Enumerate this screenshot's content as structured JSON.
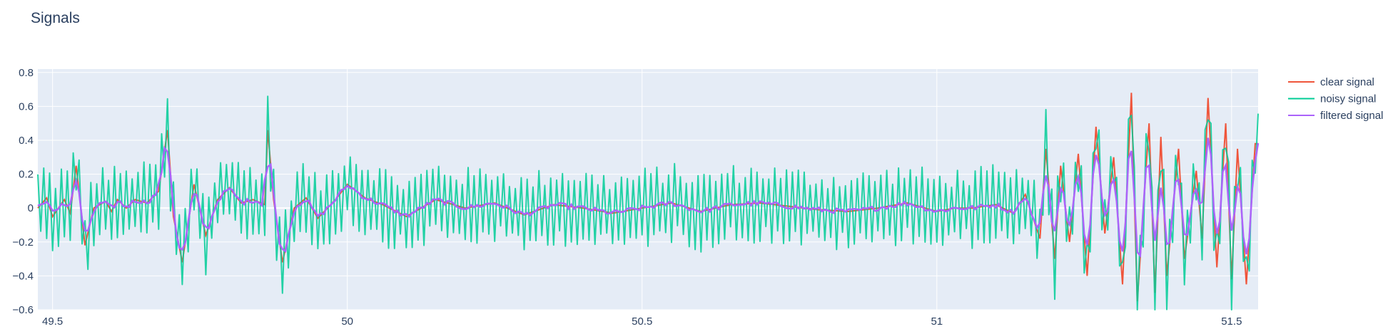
{
  "title": "Signals",
  "chart_data": {
    "type": "line",
    "title": "Signals",
    "xlabel": "",
    "ylabel": "",
    "xlim": [
      49.475,
      51.545
    ],
    "ylim": [
      -0.6,
      0.82
    ],
    "x_ticks": [
      49.5,
      50,
      50.5,
      51,
      51.5
    ],
    "x_tick_labels": [
      "49.5",
      "50",
      "50.5",
      "51",
      "51.5"
    ],
    "y_ticks": [
      0.8,
      0.6,
      0.4,
      0.2,
      0,
      -0.2,
      -0.4,
      -0.6
    ],
    "y_tick_labels": [
      "0.8",
      "0.6",
      "0.4",
      "0.2",
      "0",
      "−0.2",
      "−0.4",
      "−0.6"
    ],
    "grid": true,
    "legend_position": "top-right",
    "sample_step": 0.005,
    "noise_amplitude_note": "noisy signal alternates about the clear signal at every sample",
    "series": [
      {
        "name": "clear signal",
        "color": "#ef553b",
        "x": [
          49.475,
          49.49,
          49.5,
          49.52,
          49.53,
          49.54,
          49.555,
          49.57,
          49.59,
          49.6,
          49.61,
          49.625,
          49.64,
          49.66,
          49.68,
          49.695,
          49.705,
          49.72,
          49.74,
          49.76,
          49.78,
          49.8,
          49.82,
          49.84,
          49.86,
          49.865,
          49.875,
          49.89,
          49.91,
          49.93,
          49.95,
          49.98,
          50.0,
          50.03,
          50.06,
          50.1,
          50.15,
          50.2,
          50.25,
          50.3,
          50.35,
          50.4,
          50.45,
          50.5,
          50.55,
          50.6,
          50.65,
          50.7,
          50.75,
          50.8,
          50.85,
          50.9,
          50.95,
          51.0,
          51.03,
          51.06,
          51.1,
          51.13,
          51.15,
          51.175,
          51.185,
          51.2,
          51.21,
          51.225,
          51.24,
          51.255,
          51.27,
          51.285,
          51.3,
          51.315,
          51.33,
          51.34,
          51.36,
          51.37,
          51.38,
          51.39,
          51.41,
          51.42,
          51.44,
          51.45,
          51.46,
          51.475,
          51.49,
          51.5,
          51.51,
          51.525,
          51.54,
          51.545
        ],
        "y": [
          0.0,
          0.06,
          -0.05,
          0.05,
          -0.03,
          0.25,
          -0.22,
          0.0,
          0.04,
          -0.02,
          0.05,
          0.0,
          0.05,
          0.03,
          0.1,
          0.46,
          -0.05,
          -0.32,
          0.14,
          -0.16,
          0.05,
          0.12,
          0.03,
          0.05,
          0.02,
          0.46,
          0.05,
          -0.32,
          0.0,
          0.06,
          -0.06,
          0.05,
          0.14,
          0.06,
          0.02,
          -0.05,
          0.05,
          0.0,
          0.03,
          -0.04,
          0.02,
          0.0,
          -0.03,
          0.0,
          0.03,
          -0.02,
          0.02,
          0.03,
          0.01,
          -0.01,
          -0.02,
          0.0,
          0.03,
          -0.02,
          0.0,
          0.0,
          0.02,
          -0.03,
          0.08,
          -0.18,
          0.35,
          -0.3,
          0.25,
          -0.2,
          0.32,
          -0.4,
          0.48,
          -0.15,
          0.3,
          -0.45,
          0.68,
          -0.55,
          0.5,
          -0.5,
          0.42,
          -0.4,
          0.35,
          -0.3,
          0.22,
          -0.18,
          0.65,
          -0.35,
          0.5,
          -0.42,
          0.35,
          -0.45,
          0.38,
          0.38
        ]
      },
      {
        "name": "noisy signal",
        "color": "#00cc96"
      },
      {
        "name": "filtered signal",
        "color": "#ab63fa"
      }
    ]
  }
}
